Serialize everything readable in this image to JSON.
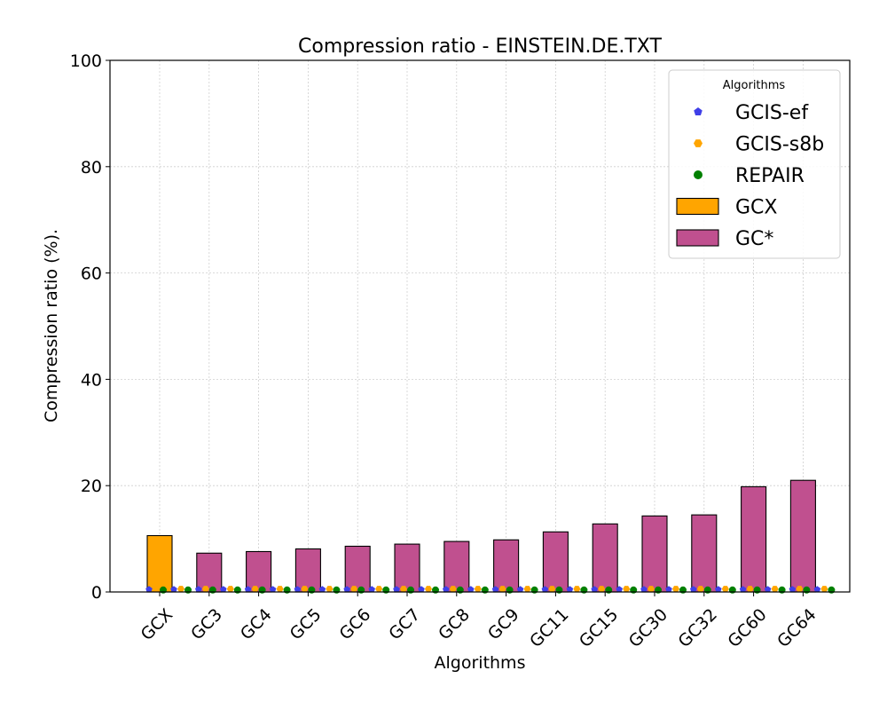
{
  "chart_data": {
    "type": "bar",
    "title": "Compression ratio -  EINSTEIN.DE.TXT",
    "xlabel": "Algorithms",
    "ylabel": "Compression ratio (%).",
    "ylim": [
      0,
      100
    ],
    "yticks": [
      0,
      20,
      40,
      60,
      80,
      100
    ],
    "grid": true,
    "categories": [
      "GCX",
      "GC3",
      "GC4",
      "GC5",
      "GC6",
      "GC7",
      "GC8",
      "GC9",
      "GC11",
      "GC15",
      "GC30",
      "GC32",
      "GC60",
      "GC64"
    ],
    "series": [
      {
        "name": "GCX",
        "kind": "bar",
        "color": "#ffa500",
        "values": [
          10.6,
          null,
          null,
          null,
          null,
          null,
          null,
          null,
          null,
          null,
          null,
          null,
          null,
          null
        ]
      },
      {
        "name": "GC*",
        "kind": "bar",
        "color": "#c0508f",
        "values": [
          null,
          7.3,
          7.6,
          8.1,
          8.6,
          9.0,
          9.5,
          9.8,
          11.3,
          12.8,
          14.3,
          14.5,
          19.8,
          21.0
        ]
      },
      {
        "name": "GCIS-ef",
        "kind": "scatter",
        "color": "#3f3fe8",
        "marker": "pentagon",
        "values": [
          0.3,
          0.3,
          0.3,
          0.3,
          0.3,
          0.3,
          0.3,
          0.3,
          0.3,
          0.3,
          0.3,
          0.3,
          0.3,
          0.3
        ]
      },
      {
        "name": "GCIS-s8b",
        "kind": "scatter",
        "color": "#ffa500",
        "marker": "hexagon",
        "values": [
          0.4,
          0.4,
          0.4,
          0.4,
          0.4,
          0.4,
          0.4,
          0.4,
          0.4,
          0.4,
          0.4,
          0.4,
          0.4,
          0.4
        ]
      },
      {
        "name": "REPAIR",
        "kind": "scatter",
        "color": "#008000",
        "marker": "circle",
        "values": [
          0.2,
          0.2,
          0.2,
          0.2,
          0.2,
          0.2,
          0.2,
          0.2,
          0.2,
          0.2,
          0.2,
          0.2,
          0.2,
          0.2
        ]
      }
    ],
    "legend": {
      "title": "Algorithms",
      "position": "top-right",
      "entries": [
        "GCIS-ef",
        "GCIS-s8b",
        "REPAIR",
        "GCX",
        "GC*"
      ]
    }
  }
}
